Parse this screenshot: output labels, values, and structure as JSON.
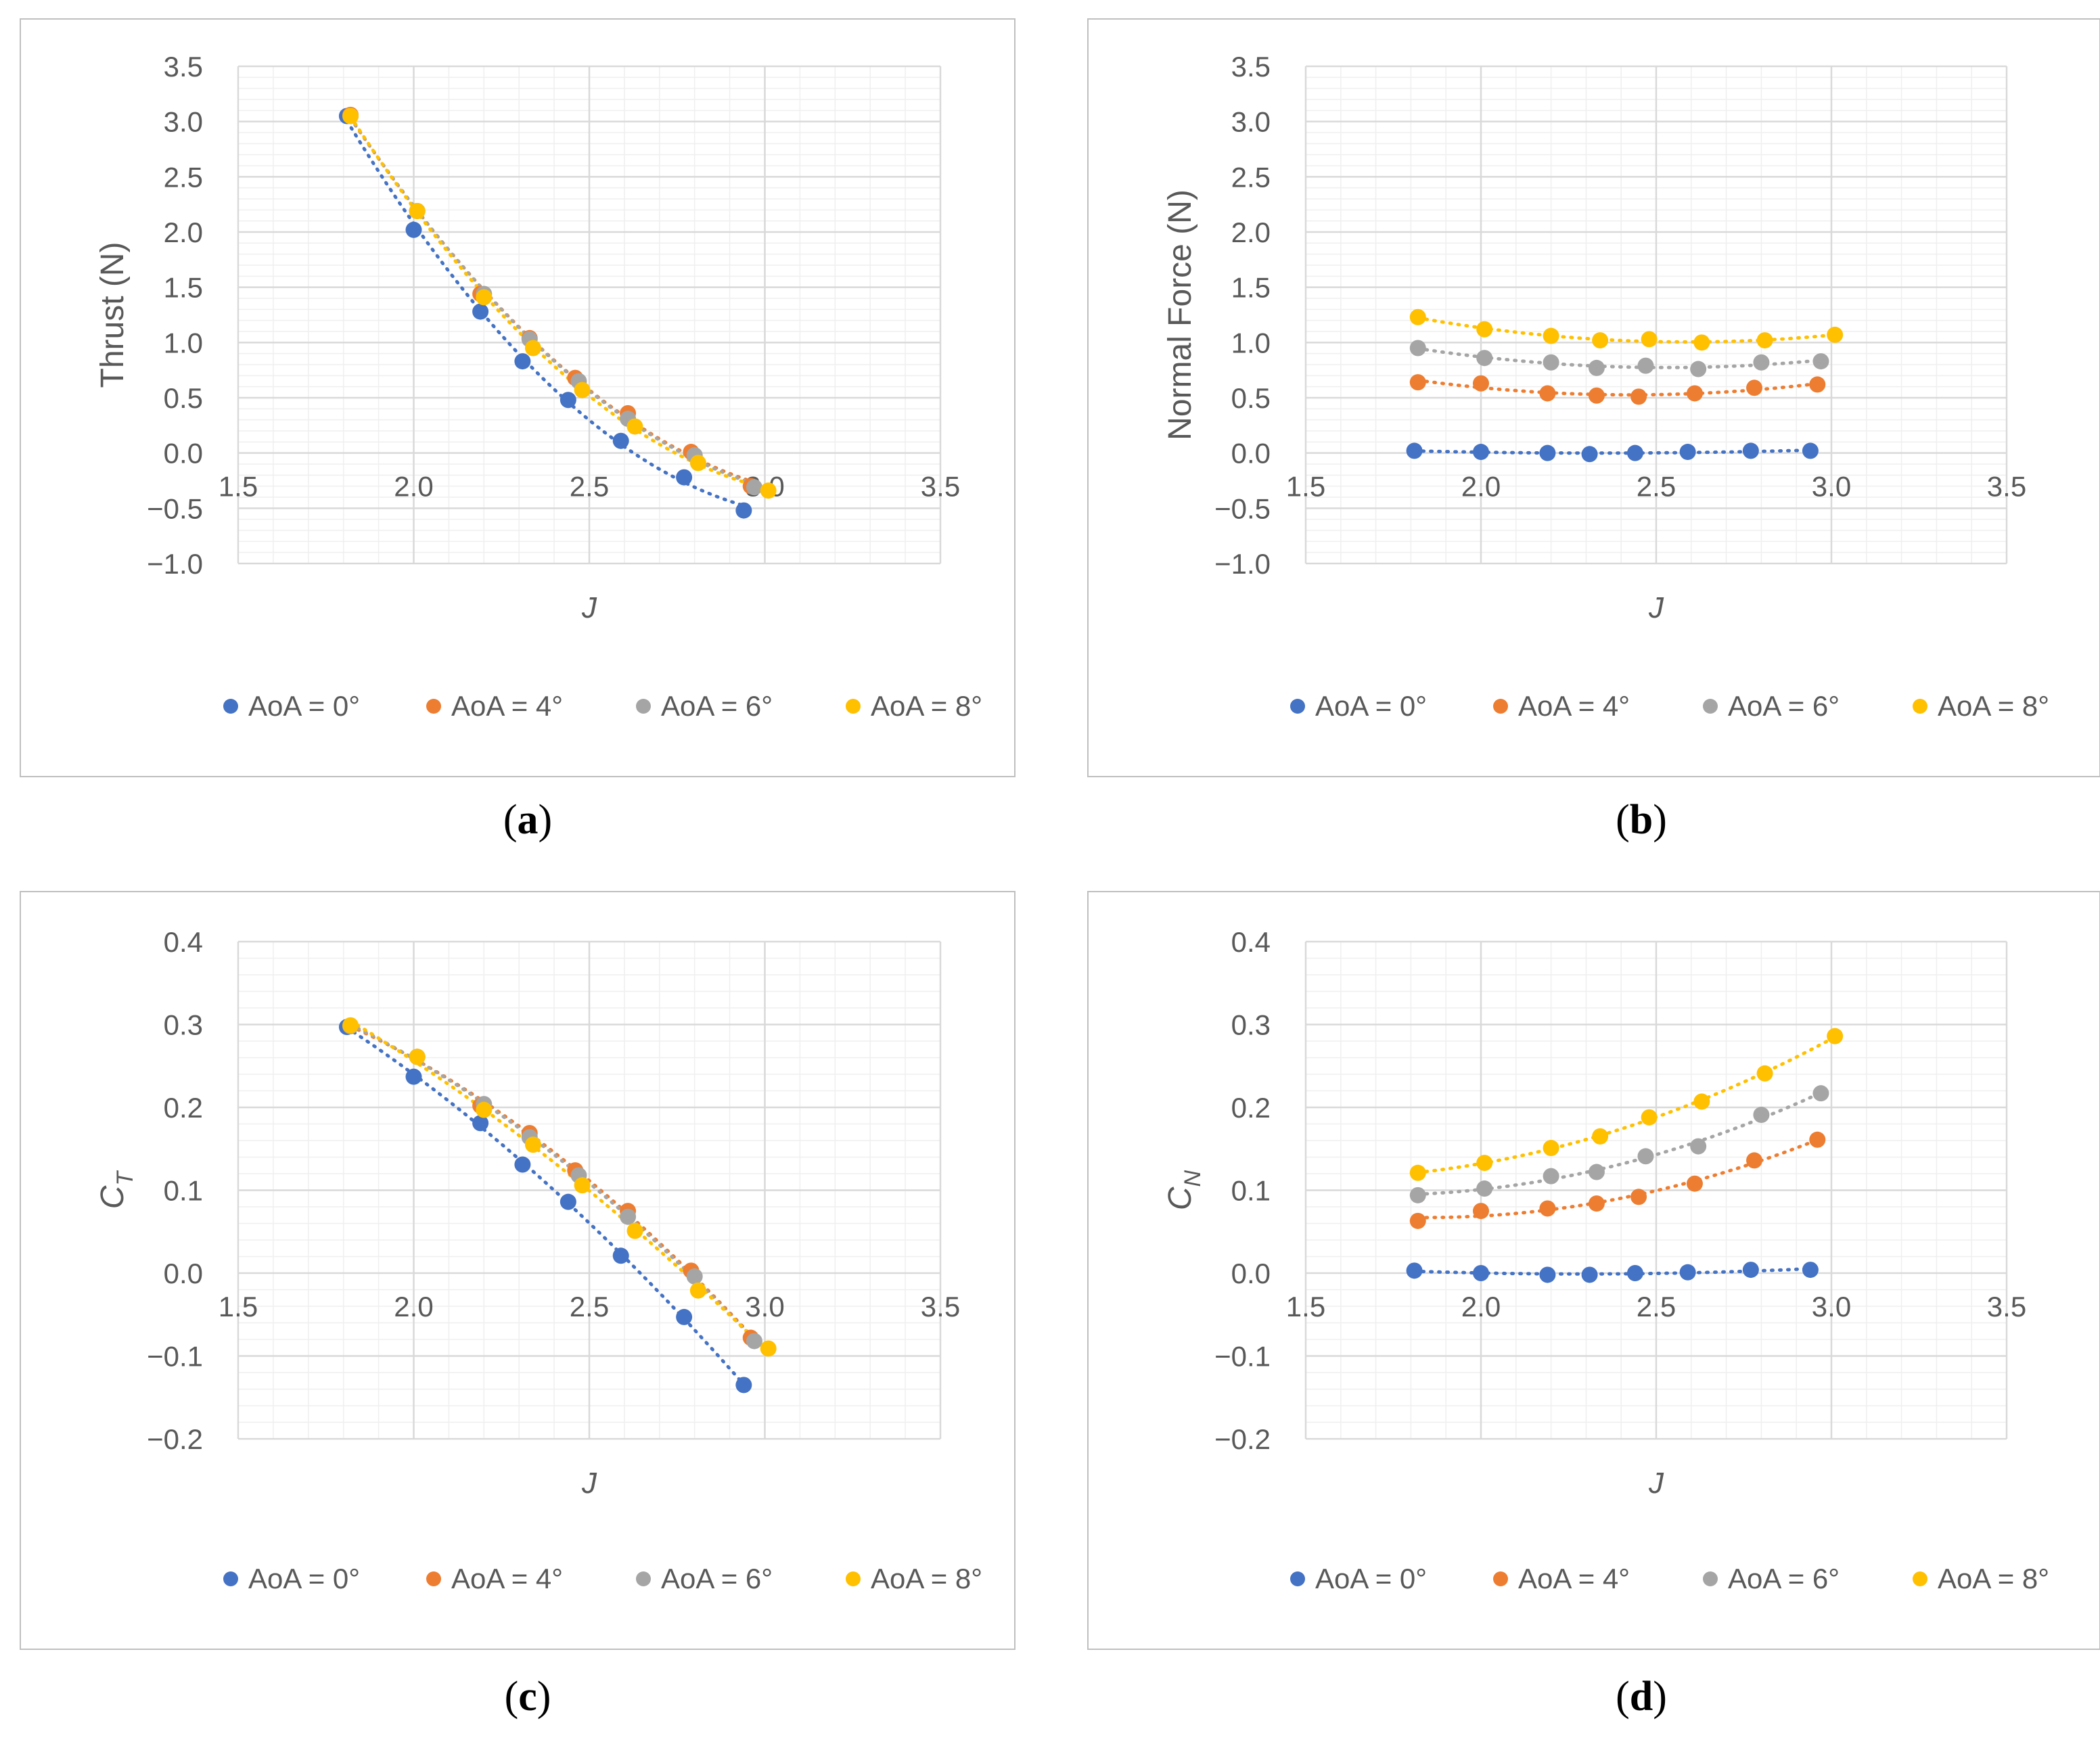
{
  "legend": [
    "AoA = 0°",
    "AoA = 4°",
    "AoA = 6°",
    "AoA = 8°"
  ],
  "colors": {
    "aoa0": "#4472C4",
    "aoa4": "#ED7D31",
    "aoa6": "#A5A5A5",
    "aoa8": "#FFC000",
    "major_grid": "#D9D9D9",
    "minor_grid": "#EFEFEF",
    "axis_text": "#595959",
    "frame": "#BFBFBF"
  },
  "chart_data": [
    {
      "type": "scatter",
      "panel": "a",
      "ylabel": "Thrust (N)",
      "xlabel": "J",
      "xlim": [
        1.5,
        3.5
      ],
      "ylim": [
        -1.0,
        3.5
      ],
      "xticks": [
        "1.5",
        "2.0",
        "2.5",
        "3.0",
        "3.5"
      ],
      "yticks": [
        "3.5",
        "3.0",
        "2.5",
        "2.0",
        "1.5",
        "1.0",
        "0.5",
        "0.0",
        "−0.5",
        "−1.0"
      ],
      "trendlines": true,
      "series": [
        {
          "name": "AoA = 0°",
          "x": [
            1.81,
            2.0,
            2.19,
            2.31,
            2.44,
            2.59,
            2.77,
            2.94
          ],
          "y": [
            3.05,
            2.02,
            1.28,
            0.83,
            0.48,
            0.11,
            -0.22,
            -0.52
          ]
        },
        {
          "name": "AoA = 4°",
          "x": [
            1.82,
            2.01,
            2.19,
            2.33,
            2.46,
            2.61,
            2.79,
            2.96
          ],
          "y": [
            3.06,
            2.19,
            1.44,
            1.04,
            0.68,
            0.36,
            0.01,
            -0.3
          ]
        },
        {
          "name": "AoA = 6°",
          "x": [
            1.82,
            2.01,
            2.2,
            2.33,
            2.47,
            2.61,
            2.8,
            2.97
          ],
          "y": [
            3.05,
            2.19,
            1.44,
            1.03,
            0.65,
            0.31,
            -0.02,
            -0.31
          ]
        },
        {
          "name": "AoA = 8°",
          "x": [
            1.82,
            2.01,
            2.2,
            2.34,
            2.48,
            2.63,
            2.81,
            3.01
          ],
          "y": [
            3.05,
            2.19,
            1.41,
            0.95,
            0.57,
            0.24,
            -0.09,
            -0.34
          ]
        }
      ]
    },
    {
      "type": "scatter",
      "panel": "b",
      "ylabel": "Normal Force (N)",
      "xlabel": "J",
      "xlim": [
        1.5,
        3.5
      ],
      "ylim": [
        -1.0,
        3.5
      ],
      "xticks": [
        "1.5",
        "2.0",
        "2.5",
        "3.0",
        "3.5"
      ],
      "yticks": [
        "3.5",
        "3.0",
        "2.5",
        "2.0",
        "1.5",
        "1.0",
        "0.5",
        "0.0",
        "−0.5",
        "−1.0"
      ],
      "trendlines": true,
      "series": [
        {
          "name": "AoA = 0°",
          "x": [
            1.81,
            2.0,
            2.19,
            2.31,
            2.44,
            2.59,
            2.77,
            2.94
          ],
          "y": [
            0.02,
            0.01,
            0.0,
            -0.01,
            0.0,
            0.01,
            0.02,
            0.02
          ]
        },
        {
          "name": "AoA = 4°",
          "x": [
            1.82,
            2.0,
            2.19,
            2.33,
            2.45,
            2.61,
            2.78,
            2.96
          ],
          "y": [
            0.64,
            0.63,
            0.54,
            0.52,
            0.51,
            0.54,
            0.59,
            0.62
          ]
        },
        {
          "name": "AoA = 6°",
          "x": [
            1.82,
            2.01,
            2.2,
            2.33,
            2.47,
            2.62,
            2.8,
            2.97
          ],
          "y": [
            0.95,
            0.86,
            0.82,
            0.77,
            0.79,
            0.76,
            0.82,
            0.83
          ]
        },
        {
          "name": "AoA = 8°",
          "x": [
            1.82,
            2.01,
            2.2,
            2.34,
            2.48,
            2.63,
            2.81,
            3.01
          ],
          "y": [
            1.23,
            1.12,
            1.06,
            1.02,
            1.03,
            1.0,
            1.02,
            1.07
          ]
        }
      ]
    },
    {
      "type": "scatter",
      "panel": "c",
      "ylabel": "C",
      "ylabel_sub": "T",
      "xlabel": "J",
      "xlim": [
        1.5,
        3.5
      ],
      "ylim": [
        -0.2,
        0.4
      ],
      "xticks": [
        "1.5",
        "2.0",
        "2.5",
        "3.0",
        "3.5"
      ],
      "yticks": [
        "0.4",
        "0.3",
        "0.2",
        "0.1",
        "0.0",
        "−0.1",
        "−0.2"
      ],
      "trendlines": true,
      "series": [
        {
          "name": "AoA = 0°",
          "x": [
            1.81,
            2.0,
            2.19,
            2.31,
            2.44,
            2.59,
            2.77,
            2.94
          ],
          "y": [
            0.297,
            0.237,
            0.181,
            0.131,
            0.086,
            0.021,
            -0.053,
            -0.135
          ]
        },
        {
          "name": "AoA = 4°",
          "x": [
            1.82,
            2.01,
            2.19,
            2.33,
            2.46,
            2.61,
            2.79,
            2.96
          ],
          "y": [
            0.298,
            0.261,
            0.202,
            0.169,
            0.124,
            0.075,
            0.003,
            -0.078
          ]
        },
        {
          "name": "AoA = 6°",
          "x": [
            1.82,
            2.01,
            2.2,
            2.33,
            2.47,
            2.61,
            2.8,
            2.97
          ],
          "y": [
            0.298,
            0.261,
            0.204,
            0.164,
            0.118,
            0.068,
            -0.004,
            -0.082
          ]
        },
        {
          "name": "AoA = 8°",
          "x": [
            1.82,
            2.01,
            2.2,
            2.34,
            2.48,
            2.63,
            2.81,
            3.01
          ],
          "y": [
            0.299,
            0.261,
            0.197,
            0.155,
            0.106,
            0.051,
            -0.021,
            -0.091
          ]
        }
      ]
    },
    {
      "type": "scatter",
      "panel": "d",
      "ylabel": "C",
      "ylabel_sub": "N",
      "xlabel": "J",
      "xlim": [
        1.5,
        3.5
      ],
      "ylim": [
        -0.2,
        0.4
      ],
      "xticks": [
        "1.5",
        "2.0",
        "2.5",
        "3.0",
        "3.5"
      ],
      "yticks": [
        "0.4",
        "0.3",
        "0.2",
        "0.1",
        "0.0",
        "−0.1",
        "−0.2"
      ],
      "trendlines": true,
      "series": [
        {
          "name": "AoA = 0°",
          "x": [
            1.81,
            2.0,
            2.19,
            2.31,
            2.44,
            2.59,
            2.77,
            2.94
          ],
          "y": [
            0.003,
            0.0,
            -0.002,
            -0.002,
            0.0,
            0.001,
            0.004,
            0.004
          ]
        },
        {
          "name": "AoA = 4°",
          "x": [
            1.82,
            2.0,
            2.19,
            2.33,
            2.45,
            2.61,
            2.78,
            2.96
          ],
          "y": [
            0.063,
            0.075,
            0.078,
            0.084,
            0.092,
            0.108,
            0.136,
            0.161
          ]
        },
        {
          "name": "AoA = 6°",
          "x": [
            1.82,
            2.01,
            2.2,
            2.33,
            2.47,
            2.62,
            2.8,
            2.97
          ],
          "y": [
            0.094,
            0.102,
            0.117,
            0.122,
            0.141,
            0.153,
            0.191,
            0.217
          ]
        },
        {
          "name": "AoA = 8°",
          "x": [
            1.82,
            2.01,
            2.2,
            2.34,
            2.48,
            2.63,
            2.81,
            3.01
          ],
          "y": [
            0.121,
            0.133,
            0.151,
            0.165,
            0.188,
            0.207,
            0.241,
            0.286
          ]
        }
      ]
    }
  ]
}
